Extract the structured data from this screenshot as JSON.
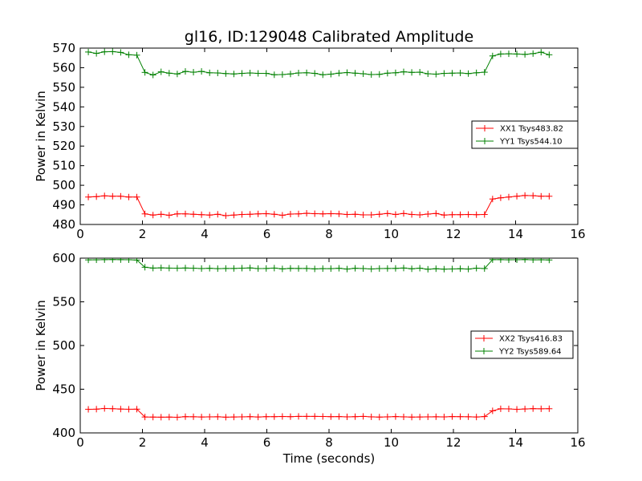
{
  "chart_data": {
    "type": "line",
    "title": "gl16, ID:129048 Calibrated Amplitude",
    "xlabel": "Time (seconds)",
    "colors": {
      "XX": "#ff0000",
      "YY": "#008000"
    },
    "subplots": [
      {
        "ylabel": "Power in Kelvin",
        "xlim": [
          0,
          16
        ],
        "ylim": [
          480,
          570
        ],
        "xticks": [
          "0",
          "2",
          "4",
          "6",
          "8",
          "10",
          "12",
          "14",
          "16"
        ],
        "yticks": [
          "480",
          "490",
          "500",
          "510",
          "520",
          "530",
          "540",
          "550",
          "560",
          "570"
        ],
        "legend_position": "center-right",
        "x": [
          0.26,
          0.52,
          0.78,
          1.04,
          1.3,
          1.56,
          1.82,
          2.08,
          2.34,
          2.6,
          2.86,
          3.12,
          3.38,
          3.64,
          3.9,
          4.16,
          4.42,
          4.68,
          4.94,
          5.2,
          5.46,
          5.72,
          5.98,
          6.24,
          6.5,
          6.76,
          7.02,
          7.28,
          7.54,
          7.8,
          8.06,
          8.32,
          8.58,
          8.84,
          9.1,
          9.36,
          9.62,
          9.88,
          10.14,
          10.4,
          10.66,
          10.92,
          11.18,
          11.44,
          11.7,
          11.96,
          12.22,
          12.48,
          12.74,
          13.0,
          13.26,
          13.52,
          13.78,
          14.04,
          14.3,
          14.56,
          14.82,
          15.08
        ],
        "series": [
          {
            "name": "XX1 Tsys483.82",
            "values": [
              494,
              494.2,
              494.6,
              494.4,
              494.4,
              494,
              494,
              485.4,
              484.8,
              485.2,
              484.7,
              485.4,
              485.4,
              485.2,
              485,
              484.8,
              485.2,
              484.5,
              484.8,
              485.1,
              485.2,
              485.4,
              485.5,
              485.2,
              484.7,
              485.3,
              485.4,
              485.7,
              485.5,
              485.4,
              485.5,
              485.4,
              485.1,
              485.2,
              484.9,
              484.9,
              485.2,
              485.6,
              485.1,
              485.6,
              485.1,
              484.9,
              485.3,
              485.6,
              484.8,
              485,
              485,
              485.1,
              485,
              485.1,
              493,
              493.6,
              494,
              494.4,
              494.8,
              494.7,
              494.4,
              494.4
            ]
          },
          {
            "name": "YY1 Tsys544.10",
            "values": [
              568,
              567.3,
              568.1,
              568.2,
              567.8,
              566.6,
              566.4,
              557.6,
              556.3,
              557.9,
              557.2,
              556.8,
              558.1,
              557.7,
              558.1,
              557.4,
              557.3,
              557,
              556.8,
              557.1,
              557.3,
              557.1,
              557.1,
              556.4,
              556.5,
              556.8,
              557.3,
              557.4,
              557.1,
              556.4,
              556.7,
              557.2,
              557.5,
              557.2,
              556.9,
              556.5,
              556.6,
              557.2,
              557.4,
              557.9,
              557.6,
              557.7,
              556.9,
              556.7,
              557.1,
              557.2,
              557.3,
              557,
              557.4,
              557.7,
              566,
              567,
              567.1,
              567,
              566.8,
              567.2,
              567.9,
              566.6
            ]
          }
        ]
      },
      {
        "ylabel": "Power in Kelvin",
        "xlim": [
          0,
          16
        ],
        "ylim": [
          400,
          600
        ],
        "xticks": [
          "0",
          "2",
          "4",
          "6",
          "8",
          "10",
          "12",
          "14",
          "16"
        ],
        "yticks": [
          "400",
          "450",
          "500",
          "550",
          "600"
        ],
        "legend_position": "center-right",
        "x": [
          0.26,
          0.52,
          0.78,
          1.04,
          1.3,
          1.56,
          1.82,
          2.08,
          2.34,
          2.6,
          2.86,
          3.12,
          3.38,
          3.64,
          3.9,
          4.16,
          4.42,
          4.68,
          4.94,
          5.2,
          5.46,
          5.72,
          5.98,
          6.24,
          6.5,
          6.76,
          7.02,
          7.28,
          7.54,
          7.8,
          8.06,
          8.32,
          8.58,
          8.84,
          9.1,
          9.36,
          9.62,
          9.88,
          10.14,
          10.4,
          10.66,
          10.92,
          11.18,
          11.44,
          11.7,
          11.96,
          12.22,
          12.48,
          12.74,
          13.0,
          13.26,
          13.52,
          13.78,
          14.04,
          14.3,
          14.56,
          14.82,
          15.08
        ],
        "series": [
          {
            "name": "XX2 Tsys416.83",
            "values": [
              427,
              427.2,
              428,
              427.7,
              427.3,
              427.1,
              427.2,
              418.2,
              418.1,
              418,
              418.1,
              417.9,
              418.6,
              418.5,
              418.2,
              418.4,
              418.5,
              418,
              418.2,
              418.4,
              418.6,
              418.2,
              418.6,
              418.6,
              418.8,
              418.6,
              418.9,
              418.9,
              418.9,
              418.8,
              418.6,
              418.7,
              418.4,
              418.6,
              418.9,
              418.4,
              418.1,
              418.4,
              418.7,
              418.4,
              418.1,
              418.2,
              418.4,
              418.5,
              418.3,
              418.7,
              418.6,
              418.5,
              418.2,
              418.7,
              425.3,
              427.6,
              427.5,
              427,
              427.4,
              427.8,
              427.6,
              427.7
            ]
          },
          {
            "name": "YY2 Tsys589.64",
            "values": [
              598,
              598.1,
              598.3,
              598.4,
              598.3,
              598.2,
              597.8,
              589.6,
              588.6,
              588.9,
              588.6,
              588.5,
              588.7,
              588.5,
              588.1,
              588.4,
              588,
              588.2,
              588.2,
              588.5,
              588.8,
              588.1,
              588.2,
              588.6,
              587.7,
              588.3,
              588.2,
              588.2,
              587.7,
              588,
              588,
              588.4,
              587.5,
              588.4,
              588.1,
              587.6,
              588.1,
              588.2,
              588.3,
              588.7,
              587.8,
              588.5,
              587.3,
              587.9,
              587.4,
              587.6,
              587.9,
              587.5,
              588.5,
              588.1,
              598.3,
              598.3,
              598.1,
              598.2,
              598.4,
              598.1,
              598.2,
              597.9
            ]
          }
        ]
      }
    ]
  }
}
